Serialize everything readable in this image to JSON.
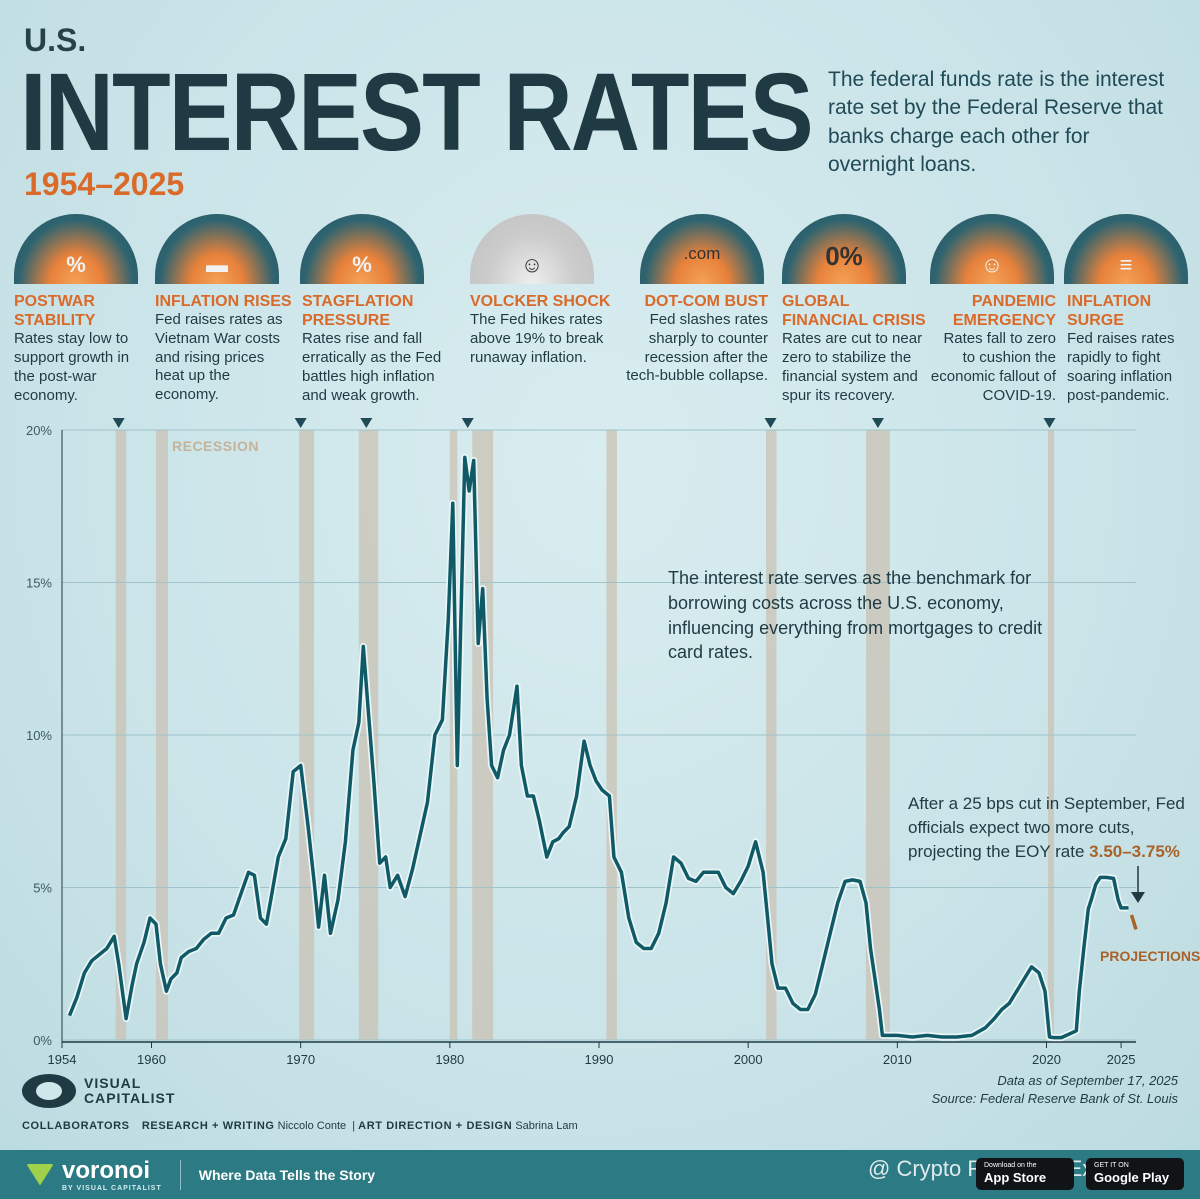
{
  "header": {
    "us": "U.S.",
    "title": "INTEREST RATES",
    "years": "1954–2025",
    "intro": "The federal funds rate is the interest rate set by the Federal Reserve that banks charge each other for overnight loans."
  },
  "events": [
    {
      "title": "POSTWAR STABILITY",
      "desc": "Rates stay low to support growth in the post-war economy.",
      "icon": "coins-chart-icon",
      "icon_text": "%"
    },
    {
      "title": "INFLATION RISES",
      "desc": "Fed raises rates as Vietnam War costs and rising prices heat up the economy.",
      "icon": "tank-icon",
      "icon_text": "▬"
    },
    {
      "title": "STAGFLATION PRESSURE",
      "desc": "Rates rise and fall erratically as the Fed battles high inflation and weak growth.",
      "icon": "percent-dice-icon",
      "icon_text": "%"
    },
    {
      "title": "VOLCKER SHOCK",
      "desc": "The Fed hikes rates above 19% to break runaway inflation.",
      "icon": "portrait-icon",
      "icon_text": "☺"
    },
    {
      "title": "DOT-COM BUST",
      "desc": "Fed slashes rates sharply to counter recession after the tech-bubble collapse.",
      "icon": "bubble-icon",
      "icon_text": ".com"
    },
    {
      "title": "GLOBAL FINANCIAL CRISIS",
      "desc": "Rates are cut to near zero to stabilize the financial system and spur its recovery.",
      "icon": "zero-percent-icon",
      "icon_text": "0%"
    },
    {
      "title": "PANDEMIC EMERGENCY",
      "desc": "Rates fall to zero to cushion the economic fallout of COVID-19.",
      "icon": "masked-franklin-icon",
      "icon_text": "☺"
    },
    {
      "title": "INFLATION SURGE",
      "desc": "Fed raises rates rapidly to fight soaring inflation post-pandemic.",
      "icon": "coin-stacks-icon",
      "icon_text": "≡"
    }
  ],
  "notes": {
    "benchmark": "The interest rate serves as the benchmark for borrowing costs across the U.S. economy, influencing everything from mortgages to credit card rates.",
    "projection_pre": "After a 25 bps cut in September, Fed officials expect two more cuts, projecting the EOY rate",
    "projection_value": "3.50–3.75%",
    "projections_label": "PROJECTIONS",
    "recession_label": "RECESSION"
  },
  "footer": {
    "data_as_of": "Data as of September 17, 2025",
    "source": "Source: Federal Reserve Bank of St. Louis",
    "brand_line1": "VISUAL",
    "brand_line2": "CAPITALIST",
    "collab_label": "COLLABORATORS",
    "research_label": "RESEARCH + WRITING",
    "research_name": "Niccolo Conte",
    "design_label": "ART DIRECTION + DESIGN",
    "design_name": "Sabrina Lam",
    "voronoi": "voronoi",
    "voronoi_sub": "BY VISUAL CAPITALIST",
    "tagline": "Where Data Tells the Story",
    "app_store": "App Store",
    "app_store_top": "Download on the",
    "google_play": "Google Play",
    "google_play_top": "GET IT ON",
    "watermark": "@ Crypto Research Expe..."
  },
  "colors": {
    "line": "#0f5a66",
    "accent": "#d96a2a",
    "recession": "#c9c2b4",
    "projection": "#a8622a"
  },
  "chart_data": {
    "type": "line",
    "title": "",
    "xlabel": "",
    "ylabel": "",
    "xlim": [
      1954,
      2026
    ],
    "ylim": [
      0,
      20
    ],
    "x_ticks": [
      "1954",
      "1960",
      "1970",
      "1980",
      "1990",
      "2000",
      "2010",
      "2020",
      "2025"
    ],
    "y_ticks": [
      "0%",
      "5%",
      "10%",
      "15%",
      "20%"
    ],
    "recessions": [
      [
        1957.6,
        1958.3
      ],
      [
        1960.3,
        1961.1
      ],
      [
        1969.9,
        1970.9
      ],
      [
        1973.9,
        1975.2
      ],
      [
        1980.0,
        1980.5
      ],
      [
        1981.5,
        1982.9
      ],
      [
        1990.5,
        1991.2
      ],
      [
        2001.2,
        2001.9
      ],
      [
        2007.9,
        2009.5
      ],
      [
        2020.1,
        2020.4
      ]
    ],
    "series": [
      {
        "x": [
          1954.5,
          1955.0,
          1955.5,
          1956.0,
          1956.5,
          1957.0,
          1957.5,
          1957.8,
          1958.3,
          1958.7,
          1959.0,
          1959.5,
          1959.9,
          1960.3,
          1960.6,
          1961.0,
          1961.3,
          1961.7,
          1962.0,
          1962.5,
          1963.0,
          1963.5,
          1964.0,
          1964.5,
          1965.0,
          1965.5,
          1966.0,
          1966.5,
          1966.9,
          1967.3,
          1967.7,
          1968.0,
          1968.5,
          1969.0,
          1969.5,
          1970.0,
          1970.5,
          1970.9,
          1971.2,
          1971.6,
          1972.0,
          1972.5,
          1973.0,
          1973.5,
          1973.9,
          1974.2,
          1974.5,
          1974.9,
          1975.3,
          1975.7,
          1976.0,
          1976.5,
          1977.0,
          1977.5,
          1978.0,
          1978.5,
          1979.0,
          1979.5,
          1979.9,
          1980.2,
          1980.5,
          1980.8,
          1981.0,
          1981.3,
          1981.6,
          1981.9,
          1982.2,
          1982.5,
          1982.8,
          1983.2,
          1983.6,
          1984.0,
          1984.5,
          1984.8,
          1985.2,
          1985.6,
          1986.0,
          1986.5,
          1986.9,
          1987.3,
          1987.6,
          1988.0,
          1988.5,
          1989.0,
          1989.4,
          1989.8,
          1990.2,
          1990.7,
          1991.0,
          1991.5,
          1992.0,
          1992.5,
          1993.0,
          1993.5,
          1994.0,
          1994.5,
          1995.0,
          1995.5,
          1996.0,
          1996.5,
          1997.0,
          1997.5,
          1998.0,
          1998.5,
          1999.0,
          1999.5,
          2000.0,
          2000.5,
          2001.0,
          2001.3,
          2001.6,
          2002.0,
          2002.5,
          2003.0,
          2003.5,
          2004.0,
          2004.5,
          2005.0,
          2005.5,
          2006.0,
          2006.5,
          2007.0,
          2007.5,
          2007.9,
          2008.2,
          2008.5,
          2008.8,
          2009.0,
          2010.0,
          2011.0,
          2012.0,
          2013.0,
          2014.0,
          2015.0,
          2015.9,
          2016.5,
          2017.0,
          2017.5,
          2018.0,
          2018.5,
          2019.0,
          2019.5,
          2019.9,
          2020.2,
          2020.5,
          2021.0,
          2022.0,
          2022.2,
          2022.5,
          2022.8,
          2023.0,
          2023.3,
          2023.6,
          2024.0,
          2024.5,
          2024.8,
          2025.0,
          2025.5
        ],
        "values": [
          0.8,
          1.4,
          2.2,
          2.6,
          2.8,
          3.0,
          3.4,
          2.5,
          0.7,
          1.8,
          2.5,
          3.2,
          4.0,
          3.8,
          2.5,
          1.6,
          2.0,
          2.2,
          2.7,
          2.9,
          3.0,
          3.3,
          3.5,
          3.5,
          4.0,
          4.1,
          4.8,
          5.5,
          5.4,
          4.0,
          3.8,
          4.6,
          6.0,
          6.6,
          8.8,
          9.0,
          7.0,
          5.2,
          3.7,
          5.4,
          3.5,
          4.6,
          6.5,
          9.5,
          10.4,
          12.9,
          11.0,
          8.5,
          5.8,
          6.0,
          5.0,
          5.4,
          4.7,
          5.6,
          6.7,
          7.8,
          10.0,
          10.5,
          13.8,
          17.6,
          9.0,
          15.0,
          19.1,
          18.0,
          19.0,
          13.0,
          14.8,
          11.2,
          9.0,
          8.6,
          9.5,
          10.0,
          11.6,
          9.0,
          8.0,
          8.0,
          7.2,
          6.0,
          6.5,
          6.6,
          6.8,
          7.0,
          8.0,
          9.8,
          9.0,
          8.5,
          8.2,
          8.0,
          6.0,
          5.5,
          4.0,
          3.2,
          3.0,
          3.0,
          3.5,
          4.5,
          6.0,
          5.8,
          5.3,
          5.2,
          5.5,
          5.5,
          5.5,
          5.0,
          4.8,
          5.2,
          5.7,
          6.5,
          5.5,
          4.0,
          2.5,
          1.7,
          1.7,
          1.2,
          1.0,
          1.0,
          1.5,
          2.5,
          3.5,
          4.5,
          5.2,
          5.25,
          5.2,
          4.5,
          3.0,
          2.0,
          1.0,
          0.15,
          0.15,
          0.1,
          0.15,
          0.1,
          0.1,
          0.15,
          0.4,
          0.7,
          1.0,
          1.2,
          1.6,
          2.0,
          2.4,
          2.2,
          1.6,
          0.1,
          0.08,
          0.08,
          0.3,
          1.6,
          3.0,
          4.3,
          4.6,
          5.1,
          5.33,
          5.33,
          5.3,
          4.6,
          4.33,
          4.33
        ]
      },
      {
        "x": [
          2025.7,
          2026.0
        ],
        "values": [
          4.1,
          3.625
        ]
      }
    ]
  }
}
